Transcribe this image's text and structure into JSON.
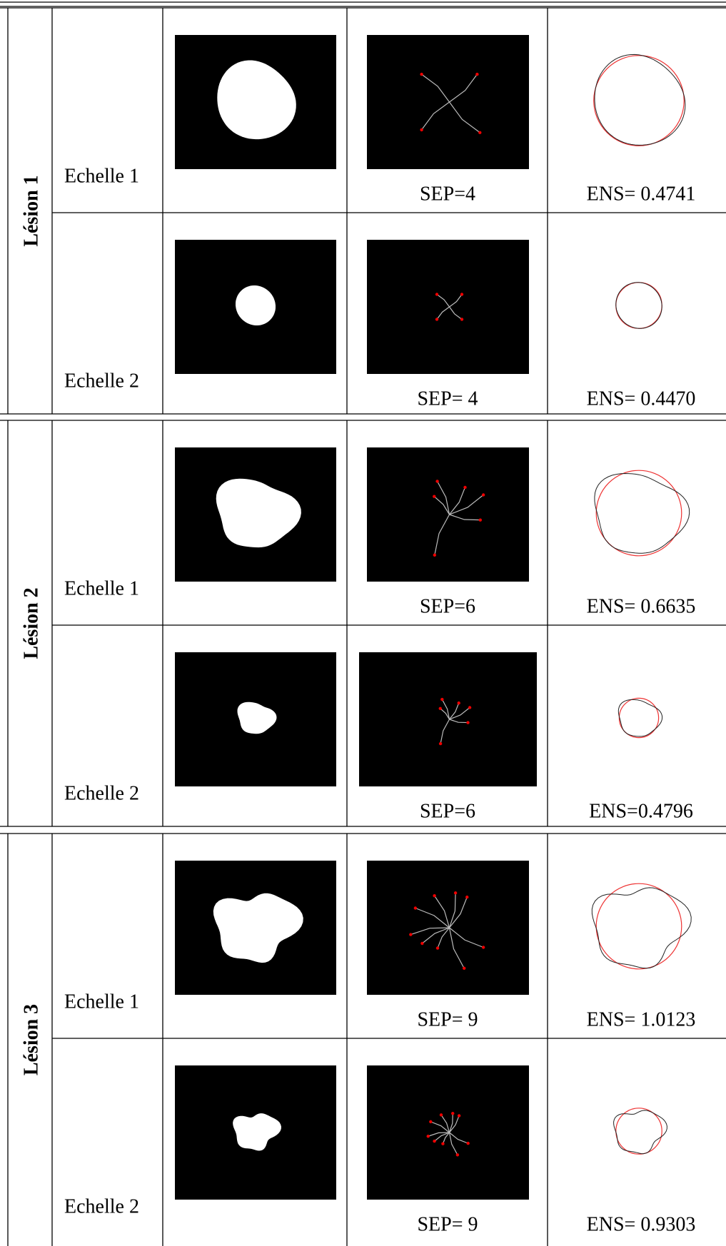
{
  "lesions": [
    {
      "label": "Lésion 1",
      "rows": [
        {
          "scale": "Echelle 1",
          "sep": "SEP=4",
          "ens": "ENS= 0.4741"
        },
        {
          "scale": "Echelle 2",
          "sep": "SEP= 4",
          "ens": "ENS= 0.4470"
        }
      ]
    },
    {
      "label": "Lésion 2",
      "rows": [
        {
          "scale": "Echelle 1",
          "sep": "SEP=6",
          "ens": "ENS= 0.6635"
        },
        {
          "scale": "Echelle 2",
          "sep": "SEP=6",
          "ens": "ENS=0.4796"
        }
      ]
    },
    {
      "label": "Lésion 3",
      "rows": [
        {
          "scale": "Echelle 1",
          "sep": "SEP= 9",
          "ens": "ENS= 1.0123"
        },
        {
          "scale": "Echelle 2",
          "sep": "SEP= 9",
          "ens": "ENS= 0.9303"
        }
      ]
    }
  ]
}
